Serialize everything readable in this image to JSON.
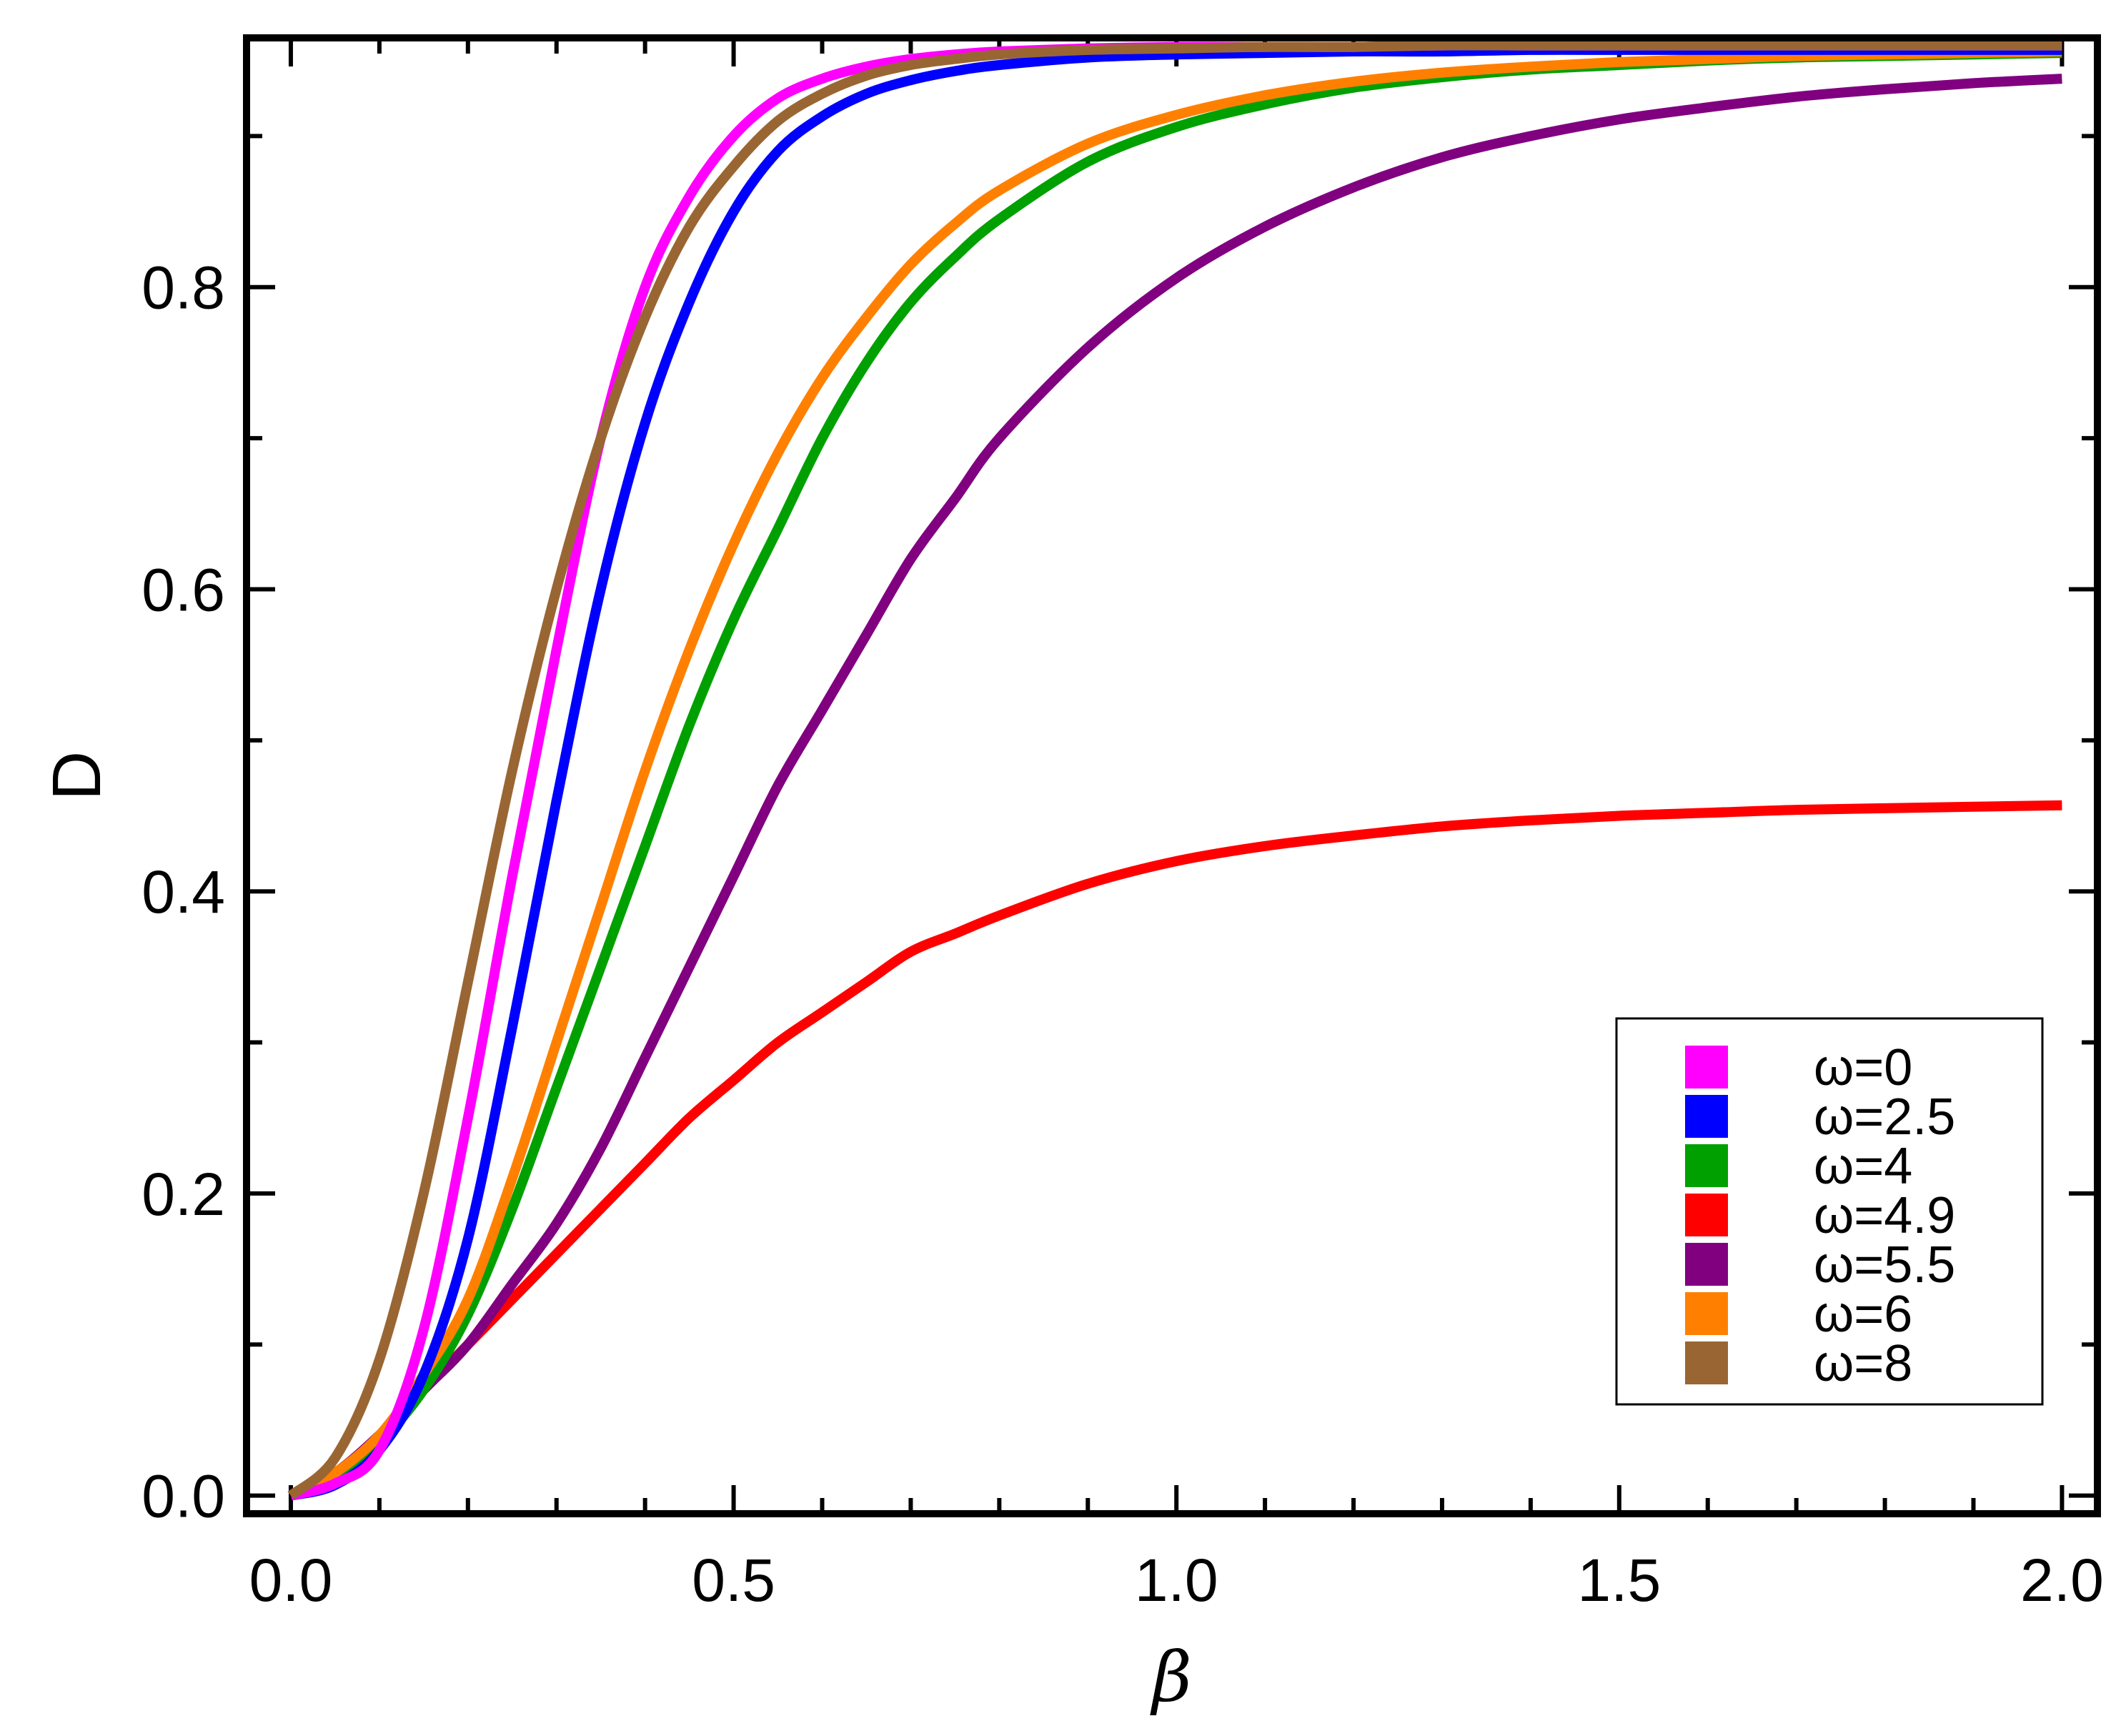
{
  "chart_data": {
    "type": "line",
    "title": "",
    "xlabel": "β",
    "ylabel": "D",
    "xlim": [
      -0.05,
      2.04
    ],
    "ylim": [
      -0.012,
      0.965
    ],
    "xticks": [
      0.0,
      0.5,
      1.0,
      1.5,
      2.0
    ],
    "xtick_labels": [
      "0.0",
      "0.5",
      "1.0",
      "1.5",
      "2.0"
    ],
    "yticks": [
      0.0,
      0.2,
      0.4,
      0.6,
      0.8
    ],
    "ytick_labels": [
      "0.0",
      "0.2",
      "0.4",
      "0.6",
      "0.8"
    ],
    "grid": false,
    "legend_position": "bottom-right",
    "x": [
      0.0,
      0.05,
      0.1,
      0.15,
      0.2,
      0.25,
      0.3,
      0.35,
      0.4,
      0.45,
      0.5,
      0.55,
      0.6,
      0.65,
      0.7,
      0.75,
      0.8,
      0.9,
      1.0,
      1.1,
      1.2,
      1.3,
      1.4,
      1.5,
      1.6,
      1.7,
      1.8,
      1.9,
      2.0
    ],
    "series": [
      {
        "name": "ω=0",
        "color": "#FF00FF",
        "values": [
          0.0,
          0.008,
          0.03,
          0.11,
          0.25,
          0.41,
          0.56,
          0.7,
          0.8,
          0.86,
          0.9,
          0.925,
          0.938,
          0.946,
          0.951,
          0.954,
          0.956,
          0.958,
          0.959,
          0.959,
          0.959,
          0.96,
          0.96,
          0.96,
          0.96,
          0.96,
          0.96,
          0.96,
          0.96
        ]
      },
      {
        "name": "ω=2.5",
        "color": "#0000FF",
        "values": [
          0.0,
          0.007,
          0.03,
          0.08,
          0.17,
          0.31,
          0.46,
          0.6,
          0.71,
          0.79,
          0.85,
          0.89,
          0.913,
          0.928,
          0.937,
          0.943,
          0.947,
          0.952,
          0.954,
          0.955,
          0.956,
          0.956,
          0.957,
          0.957,
          0.957,
          0.957,
          0.957,
          0.957,
          0.957
        ]
      },
      {
        "name": "ω=4",
        "color": "#00A000",
        "values": [
          0.0,
          0.01,
          0.035,
          0.07,
          0.12,
          0.19,
          0.27,
          0.35,
          0.43,
          0.51,
          0.58,
          0.64,
          0.7,
          0.75,
          0.79,
          0.82,
          0.845,
          0.883,
          0.906,
          0.921,
          0.932,
          0.939,
          0.944,
          0.947,
          0.95,
          0.952,
          0.953,
          0.954,
          0.955
        ]
      },
      {
        "name": "ω=4.9",
        "color": "#FF0000",
        "values": [
          0.0,
          0.015,
          0.04,
          0.07,
          0.1,
          0.13,
          0.16,
          0.19,
          0.22,
          0.25,
          0.275,
          0.3,
          0.32,
          0.34,
          0.36,
          0.372,
          0.384,
          0.405,
          0.42,
          0.43,
          0.437,
          0.443,
          0.447,
          0.45,
          0.452,
          0.454,
          0.455,
          0.456,
          0.457
        ]
      },
      {
        "name": "ω=5.5",
        "color": "#800080",
        "values": [
          0.0,
          0.015,
          0.04,
          0.07,
          0.1,
          0.14,
          0.18,
          0.23,
          0.29,
          0.35,
          0.41,
          0.47,
          0.52,
          0.57,
          0.62,
          0.66,
          0.7,
          0.76,
          0.806,
          0.84,
          0.866,
          0.886,
          0.9,
          0.911,
          0.919,
          0.926,
          0.931,
          0.935,
          0.938
        ]
      },
      {
        "name": "ω=6",
        "color": "#FF8000",
        "values": [
          0.0,
          0.015,
          0.04,
          0.08,
          0.13,
          0.21,
          0.3,
          0.39,
          0.48,
          0.56,
          0.63,
          0.69,
          0.74,
          0.78,
          0.815,
          0.842,
          0.864,
          0.895,
          0.914,
          0.927,
          0.936,
          0.942,
          0.946,
          0.949,
          0.951,
          0.953,
          0.954,
          0.955,
          0.956
        ]
      },
      {
        "name": "ω=8",
        "color": "#996633",
        "values": [
          0.0,
          0.025,
          0.09,
          0.2,
          0.34,
          0.48,
          0.6,
          0.7,
          0.78,
          0.84,
          0.88,
          0.91,
          0.928,
          0.94,
          0.947,
          0.951,
          0.954,
          0.957,
          0.958,
          0.959,
          0.959,
          0.96,
          0.96,
          0.96,
          0.96,
          0.96,
          0.96,
          0.96,
          0.96
        ]
      }
    ]
  }
}
